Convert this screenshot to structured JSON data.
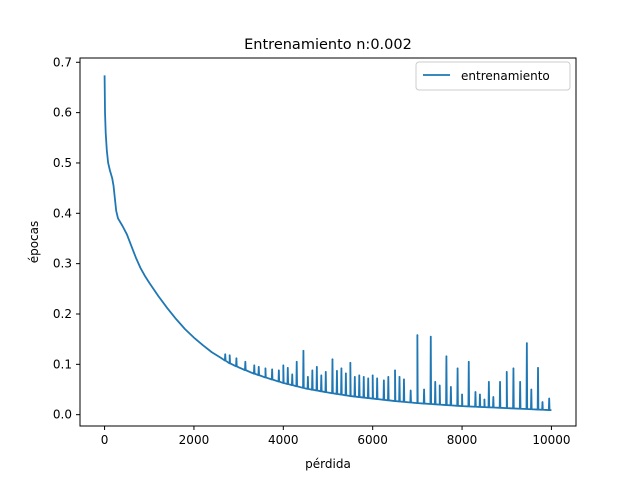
{
  "chart_data": {
    "type": "line",
    "title": "Entrenamiento n:0.002",
    "xlabel": "pérdida",
    "ylabel": "épocas",
    "xlim": [
      -550,
      10550
    ],
    "ylim": [
      -0.0225,
      0.7085
    ],
    "xticks": [
      "0",
      "2000",
      "4000",
      "6000",
      "8000",
      "10000"
    ],
    "xtick_values": [
      0,
      2000,
      4000,
      6000,
      8000,
      10000
    ],
    "yticks": [
      "0.0",
      "0.1",
      "0.2",
      "0.3",
      "0.4",
      "0.5",
      "0.6",
      "0.7"
    ],
    "ytick_values": [
      0.0,
      0.1,
      0.2,
      0.3,
      0.4,
      0.5,
      0.6,
      0.7
    ],
    "grid": false,
    "legend_position": "top-right",
    "series": [
      {
        "name": "entrenamiento",
        "color": "#1f77b4",
        "baseline": [
          [
            0,
            0.674
          ],
          [
            10,
            0.6
          ],
          [
            25,
            0.56
          ],
          [
            50,
            0.525
          ],
          [
            80,
            0.5
          ],
          [
            120,
            0.485
          ],
          [
            170,
            0.47
          ],
          [
            200,
            0.455
          ],
          [
            230,
            0.43
          ],
          [
            260,
            0.405
          ],
          [
            300,
            0.39
          ],
          [
            400,
            0.375
          ],
          [
            500,
            0.358
          ],
          [
            600,
            0.335
          ],
          [
            700,
            0.312
          ],
          [
            800,
            0.292
          ],
          [
            900,
            0.276
          ],
          [
            1000,
            0.262
          ],
          [
            1200,
            0.236
          ],
          [
            1400,
            0.212
          ],
          [
            1600,
            0.19
          ],
          [
            1800,
            0.17
          ],
          [
            2000,
            0.153
          ],
          [
            2200,
            0.138
          ],
          [
            2400,
            0.124
          ],
          [
            2600,
            0.113
          ],
          [
            2800,
            0.102
          ],
          [
            3000,
            0.094
          ],
          [
            3300,
            0.083
          ],
          [
            3600,
            0.074
          ],
          [
            4000,
            0.063
          ],
          [
            4500,
            0.052
          ],
          [
            5000,
            0.044
          ],
          [
            5500,
            0.037
          ],
          [
            6000,
            0.032
          ],
          [
            6500,
            0.027
          ],
          [
            7000,
            0.023
          ],
          [
            7500,
            0.02
          ],
          [
            8000,
            0.017
          ],
          [
            8500,
            0.015
          ],
          [
            9000,
            0.013
          ],
          [
            9500,
            0.011
          ],
          [
            10000,
            0.009
          ]
        ],
        "spikes": [
          [
            2700,
            0.12
          ],
          [
            2800,
            0.118
          ],
          [
            2950,
            0.112
          ],
          [
            3150,
            0.105
          ],
          [
            3350,
            0.098
          ],
          [
            3450,
            0.095
          ],
          [
            3600,
            0.092
          ],
          [
            3750,
            0.09
          ],
          [
            3900,
            0.088
          ],
          [
            4000,
            0.098
          ],
          [
            4100,
            0.093
          ],
          [
            4200,
            0.08
          ],
          [
            4300,
            0.105
          ],
          [
            4450,
            0.127
          ],
          [
            4550,
            0.075
          ],
          [
            4650,
            0.088
          ],
          [
            4750,
            0.095
          ],
          [
            4850,
            0.078
          ],
          [
            4950,
            0.085
          ],
          [
            5100,
            0.11
          ],
          [
            5200,
            0.087
          ],
          [
            5300,
            0.092
          ],
          [
            5400,
            0.082
          ],
          [
            5500,
            0.103
          ],
          [
            5600,
            0.075
          ],
          [
            5700,
            0.078
          ],
          [
            5800,
            0.075
          ],
          [
            5900,
            0.072
          ],
          [
            6000,
            0.078
          ],
          [
            6100,
            0.072
          ],
          [
            6250,
            0.068
          ],
          [
            6350,
            0.075
          ],
          [
            6500,
            0.088
          ],
          [
            6600,
            0.075
          ],
          [
            6700,
            0.07
          ],
          [
            6850,
            0.048
          ],
          [
            7000,
            0.158
          ],
          [
            7150,
            0.05
          ],
          [
            7300,
            0.155
          ],
          [
            7400,
            0.065
          ],
          [
            7500,
            0.058
          ],
          [
            7650,
            0.116
          ],
          [
            7750,
            0.055
          ],
          [
            7900,
            0.092
          ],
          [
            8000,
            0.04
          ],
          [
            8150,
            0.105
          ],
          [
            8300,
            0.045
          ],
          [
            8400,
            0.04
          ],
          [
            8500,
            0.03
          ],
          [
            8600,
            0.065
          ],
          [
            8700,
            0.035
          ],
          [
            8850,
            0.065
          ],
          [
            9000,
            0.085
          ],
          [
            9150,
            0.092
          ],
          [
            9300,
            0.065
          ],
          [
            9450,
            0.142
          ],
          [
            9550,
            0.05
          ],
          [
            9700,
            0.093
          ],
          [
            9800,
            0.025
          ],
          [
            9950,
            0.032
          ]
        ]
      }
    ]
  }
}
